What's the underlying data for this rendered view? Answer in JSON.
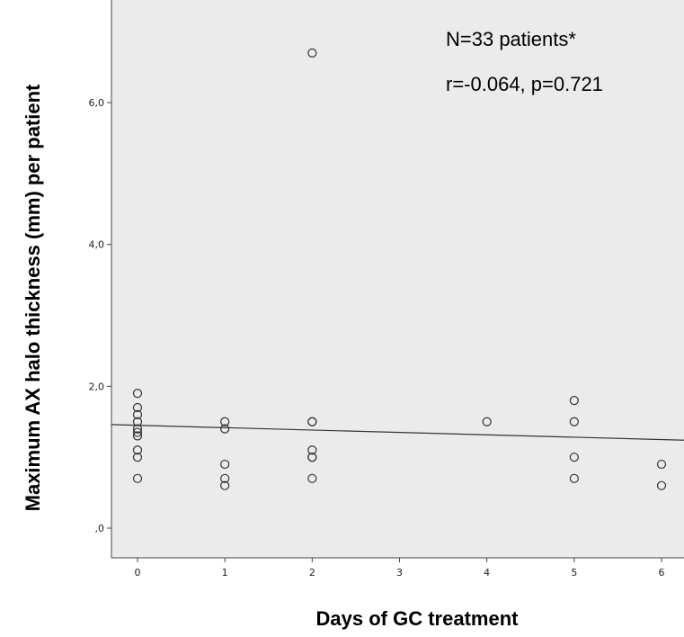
{
  "chart_data": {
    "type": "scatter",
    "xlabel": "Days of GC treatment",
    "ylabel": "Maximum AX halo thickness (mm) per patient",
    "xlim": [
      -0.3,
      6.3
    ],
    "ylim": [
      -0.2,
      7.4
    ],
    "x_ticks": [
      0,
      1,
      2,
      3,
      4,
      5,
      6
    ],
    "x_tick_labels": [
      "0",
      "1",
      "2",
      "3",
      "4",
      "5",
      "6"
    ],
    "y_ticks": [
      0,
      2,
      4,
      6
    ],
    "y_tick_labels": [
      ",0",
      "2,0",
      "4,0",
      "6,0"
    ],
    "grid": false,
    "background": "#ebebeb",
    "marker": "open-circle",
    "annotations": [
      "N=33 patients*",
      "r=-0.064, p=0.721"
    ],
    "fit_line": {
      "x": [
        -0.3,
        6.3
      ],
      "y": [
        1.46,
        1.24
      ]
    },
    "points": [
      {
        "x": 0,
        "y": 1.9
      },
      {
        "x": 0,
        "y": 1.7
      },
      {
        "x": 0,
        "y": 1.6
      },
      {
        "x": 0,
        "y": 1.5
      },
      {
        "x": 0,
        "y": 1.4
      },
      {
        "x": 0,
        "y": 1.35
      },
      {
        "x": 0,
        "y": 1.3
      },
      {
        "x": 0,
        "y": 1.1
      },
      {
        "x": 0,
        "y": 1.0
      },
      {
        "x": 0,
        "y": 0.7
      },
      {
        "x": 1,
        "y": 1.5
      },
      {
        "x": 1,
        "y": 1.4
      },
      {
        "x": 1,
        "y": 0.9
      },
      {
        "x": 1,
        "y": 0.7
      },
      {
        "x": 1,
        "y": 0.6
      },
      {
        "x": 2,
        "y": 6.7
      },
      {
        "x": 2,
        "y": 1.5
      },
      {
        "x": 2,
        "y": 1.5
      },
      {
        "x": 2,
        "y": 1.1
      },
      {
        "x": 2,
        "y": 1.0
      },
      {
        "x": 2,
        "y": 1.0
      },
      {
        "x": 2,
        "y": 0.7
      },
      {
        "x": 4,
        "y": 1.5
      },
      {
        "x": 5,
        "y": 1.8
      },
      {
        "x": 5,
        "y": 1.5
      },
      {
        "x": 5,
        "y": 1.0
      },
      {
        "x": 5,
        "y": 0.7
      },
      {
        "x": 6,
        "y": 0.9
      },
      {
        "x": 6,
        "y": 0.6
      }
    ]
  }
}
